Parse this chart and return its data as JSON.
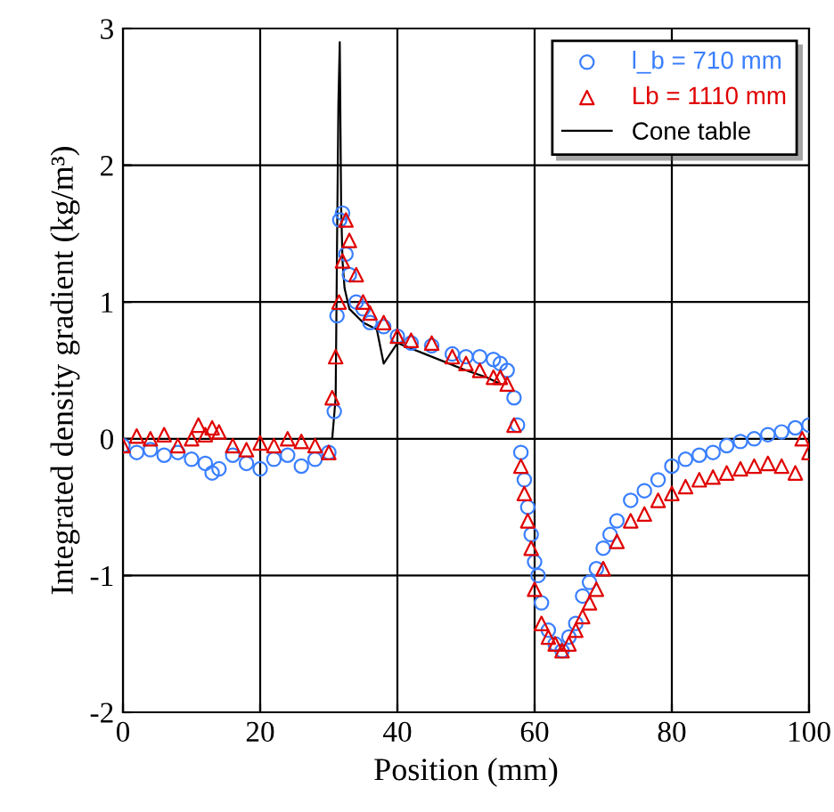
{
  "chart_data": {
    "type": "scatter",
    "xlabel": "Position (mm)",
    "ylabel": "Integrated density gradient (kg/m³)",
    "xlim": [
      0,
      100
    ],
    "ylim": [
      -2,
      3
    ],
    "xticks": [
      0,
      20,
      40,
      60,
      80,
      100
    ],
    "yticks": [
      -2,
      -1,
      0,
      1,
      2,
      3
    ],
    "grid": true,
    "legend": "top right",
    "series": [
      {
        "name": "l_b = 710 mm",
        "color": "#3a7fff",
        "marker": "circle",
        "x": [
          0,
          2,
          4,
          6,
          8,
          10,
          12,
          13,
          14,
          16,
          18,
          20,
          22,
          24,
          26,
          28,
          30,
          30.8,
          31.2,
          31.6,
          32,
          32.5,
          33,
          34,
          35,
          36,
          38,
          40,
          42,
          45,
          48,
          50,
          52,
          54,
          55,
          56,
          57,
          57.5,
          58,
          58.5,
          59,
          59.5,
          60,
          60.5,
          61,
          62,
          63,
          64,
          65,
          66,
          67,
          68,
          69,
          70,
          71,
          72,
          74,
          76,
          78,
          80,
          82,
          84,
          86,
          88,
          90,
          92,
          94,
          96,
          98,
          100
        ],
        "values": [
          -0.05,
          -0.1,
          -0.08,
          -0.12,
          -0.1,
          -0.15,
          -0.18,
          -0.25,
          -0.22,
          -0.12,
          -0.18,
          -0.22,
          -0.15,
          -0.12,
          -0.2,
          -0.15,
          -0.1,
          0.2,
          0.9,
          1.6,
          1.65,
          1.35,
          1.2,
          1.0,
          0.95,
          0.85,
          0.82,
          0.75,
          0.7,
          0.68,
          0.62,
          0.6,
          0.6,
          0.58,
          0.55,
          0.5,
          0.3,
          0.1,
          -0.1,
          -0.3,
          -0.5,
          -0.7,
          -0.9,
          -1.0,
          -1.2,
          -1.4,
          -1.5,
          -1.55,
          -1.45,
          -1.35,
          -1.15,
          -1.05,
          -0.95,
          -0.8,
          -0.7,
          -0.6,
          -0.45,
          -0.38,
          -0.3,
          -0.2,
          -0.15,
          -0.12,
          -0.1,
          -0.05,
          -0.02,
          0.0,
          0.03,
          0.05,
          0.08,
          0.1
        ]
      },
      {
        "name": "Lb = 1110 mm",
        "color": "#e00000",
        "marker": "triangle",
        "x": [
          0,
          2,
          4,
          6,
          8,
          10,
          11,
          12,
          13,
          14,
          16,
          18,
          20,
          22,
          24,
          26,
          28,
          30,
          30.5,
          31,
          31.5,
          32,
          32.5,
          33,
          34,
          35,
          36,
          38,
          40,
          42,
          45,
          48,
          50,
          52,
          54,
          55,
          56,
          57,
          58,
          58.5,
          59,
          59.5,
          60,
          61,
          62,
          63,
          64,
          65,
          66,
          67,
          68,
          69,
          70,
          72,
          74,
          76,
          78,
          80,
          82,
          84,
          86,
          88,
          90,
          92,
          94,
          96,
          98,
          99,
          100
        ],
        "values": [
          -0.05,
          0.02,
          0.0,
          0.03,
          -0.05,
          0.0,
          0.1,
          0.03,
          0.08,
          0.05,
          -0.05,
          -0.08,
          -0.03,
          -0.05,
          0.0,
          -0.02,
          -0.05,
          -0.1,
          0.3,
          0.6,
          1.0,
          1.3,
          1.6,
          1.45,
          1.2,
          1.0,
          0.92,
          0.85,
          0.75,
          0.72,
          0.7,
          0.6,
          0.55,
          0.5,
          0.45,
          0.45,
          0.4,
          0.1,
          -0.2,
          -0.4,
          -0.6,
          -0.8,
          -1.1,
          -1.35,
          -1.45,
          -1.5,
          -1.55,
          -1.5,
          -1.4,
          -1.3,
          -1.2,
          -1.1,
          -0.95,
          -0.75,
          -0.6,
          -0.55,
          -0.45,
          -0.4,
          -0.35,
          -0.3,
          -0.28,
          -0.25,
          -0.22,
          -0.2,
          -0.18,
          -0.2,
          -0.25,
          0.0,
          -0.1
        ]
      },
      {
        "name": "Cone table",
        "type": "line",
        "color": "#000000",
        "marker": "none",
        "x": [
          28,
          30.5,
          31,
          31.2,
          31.4,
          31.6,
          31.8,
          32,
          32.3,
          33,
          35,
          37,
          38,
          40,
          45,
          50,
          53,
          55
        ],
        "values": [
          0,
          0,
          0.3,
          1.4,
          2.45,
          2.9,
          1.7,
          1.3,
          1.1,
          0.95,
          0.85,
          0.8,
          0.55,
          0.7,
          0.6,
          0.5,
          0.45,
          0.4
        ]
      }
    ]
  }
}
